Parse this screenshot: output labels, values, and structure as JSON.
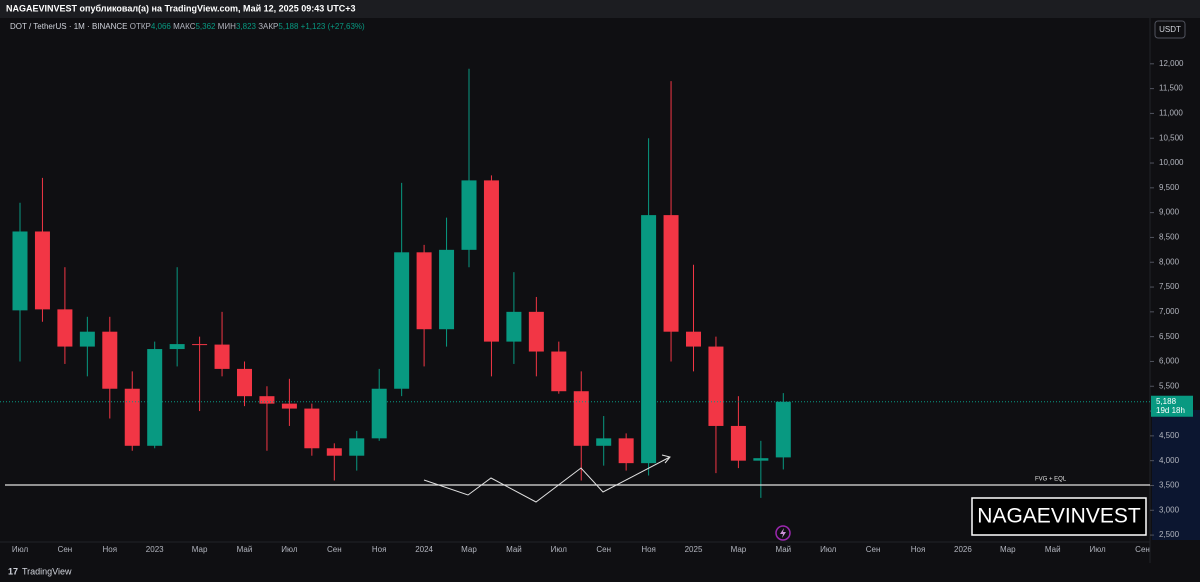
{
  "header": {
    "text": "NAGAEVINVEST опубликовал(а) на TradingView.com, Май 12, 2025 09:43 UTC+3"
  },
  "legend": {
    "symbol": "DOT / TetherUS · 1M · BINANCE",
    "open_label": "ОТКР",
    "open": "4,066",
    "high_label": "МАКС",
    "high": "5,362",
    "low_label": "МИН",
    "low": "3,823",
    "close_label": "ЗАКР",
    "close": "5,188",
    "change": "+1,123 (+27,63%)"
  },
  "currency_button": "USDT",
  "price_tag": {
    "value": 5.188,
    "label": "5,188",
    "countdown": "19d 18h"
  },
  "annotation": "FVG + EQL",
  "watermark": "NAGAEVINVEST",
  "footer": "TradingView",
  "chart_data": {
    "type": "candlestick",
    "categories": [
      "Июл",
      null,
      "Сен",
      null,
      "Ноя",
      null,
      "2023",
      null,
      "Мар",
      null,
      "Май",
      null,
      "Июл",
      null,
      "Сен",
      null,
      "Ноя",
      null,
      "2024",
      null,
      "Мар",
      null,
      "Май",
      null,
      "Июл",
      null,
      "Сен",
      null,
      "Ноя",
      null,
      "2025",
      null,
      "Мар",
      null,
      "Май",
      null,
      "Июл",
      null,
      "Сен",
      null,
      "Ноя",
      null,
      "2026",
      null,
      "Мар",
      null,
      "Май",
      null,
      "Июл",
      null,
      "Сен"
    ],
    "open": [
      7.03,
      8.62,
      7.05,
      6.3,
      6.6,
      5.45,
      4.3,
      6.25,
      6.35,
      6.34,
      5.85,
      5.3,
      5.15,
      5.05,
      4.25,
      4.1,
      4.45,
      5.45,
      8.2,
      6.65,
      8.25,
      9.65,
      6.4,
      7.0,
      6.2,
      5.4,
      4.3,
      4.45,
      3.95,
      8.95,
      6.6,
      6.3,
      4.7,
      4.0,
      4.066,
      null,
      null,
      null,
      null,
      null,
      null,
      null,
      null,
      null,
      null,
      null,
      null,
      null,
      null,
      null,
      null
    ],
    "high": [
      9.2,
      9.7,
      7.9,
      6.9,
      6.9,
      5.8,
      6.4,
      7.9,
      6.5,
      7.0,
      6.0,
      5.5,
      5.65,
      5.15,
      4.35,
      4.6,
      5.85,
      9.6,
      8.35,
      8.9,
      11.9,
      9.75,
      7.8,
      7.3,
      6.4,
      5.8,
      4.9,
      4.55,
      10.5,
      11.65,
      7.95,
      6.5,
      5.3,
      4.4,
      5.362,
      null,
      null,
      null,
      null,
      null,
      null,
      null,
      null,
      null,
      null,
      null,
      null,
      null,
      null,
      null,
      null
    ],
    "low": [
      6.0,
      6.8,
      5.95,
      5.7,
      4.85,
      4.2,
      4.25,
      5.9,
      5.0,
      5.7,
      5.1,
      4.2,
      4.7,
      4.1,
      3.6,
      3.8,
      4.4,
      5.3,
      5.9,
      6.3,
      7.9,
      5.7,
      5.95,
      5.7,
      5.35,
      3.6,
      3.9,
      3.8,
      3.7,
      6.0,
      5.8,
      3.75,
      3.85,
      3.25,
      3.823,
      null,
      null,
      null,
      null,
      null,
      null,
      null,
      null,
      null,
      null,
      null,
      null,
      null,
      null,
      null,
      null
    ],
    "close": [
      8.62,
      7.05,
      6.3,
      6.6,
      5.45,
      4.3,
      6.25,
      6.35,
      6.34,
      5.85,
      5.3,
      5.15,
      5.05,
      4.25,
      4.1,
      4.45,
      5.45,
      8.2,
      6.65,
      8.25,
      9.65,
      6.4,
      7.0,
      6.2,
      5.4,
      4.3,
      4.45,
      3.95,
      8.95,
      6.6,
      6.3,
      4.7,
      4.0,
      4.05,
      5.188,
      null,
      null,
      null,
      null,
      null,
      null,
      null,
      null,
      null,
      null,
      null,
      null,
      null,
      null,
      null,
      null
    ],
    "up_color": "#089981",
    "down_color": "#f23645",
    "ylim": [
      2.3,
      12.48
    ],
    "yticks": [
      {
        "value": 2.5,
        "label": "2,500"
      },
      {
        "value": 3,
        "label": "3,000"
      },
      {
        "value": 3.5,
        "label": "3,500"
      },
      {
        "value": 4,
        "label": "4,000"
      },
      {
        "value": 4.5,
        "label": "4,500"
      },
      {
        "value": 5,
        "label": "5,000"
      },
      {
        "value": 5.5,
        "label": "5,500"
      },
      {
        "value": 6,
        "label": "6,000"
      },
      {
        "value": 6.5,
        "label": "6,500"
      },
      {
        "value": 7,
        "label": "7,000"
      },
      {
        "value": 7.5,
        "label": "7,500"
      },
      {
        "value": 8,
        "label": "8,000"
      },
      {
        "value": 8.5,
        "label": "8,500"
      },
      {
        "value": 9,
        "label": "9,000"
      },
      {
        "value": 9.5,
        "label": "9,500"
      },
      {
        "value": 10,
        "label": "10,000"
      },
      {
        "value": 10.5,
        "label": "10,500"
      },
      {
        "value": 11,
        "label": "11,000"
      },
      {
        "value": 11.5,
        "label": "11,500"
      },
      {
        "value": 12,
        "label": "12,000"
      }
    ],
    "grid": false
  }
}
